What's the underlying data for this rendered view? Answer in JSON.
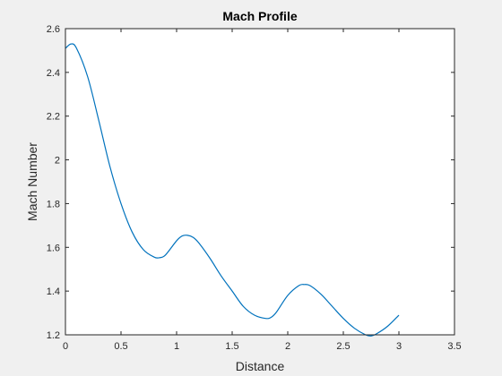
{
  "chart_data": {
    "type": "line",
    "title": "Mach Profile",
    "xlabel": "Distance",
    "ylabel": "Mach Number",
    "xlim": [
      0,
      3.5
    ],
    "ylim": [
      1.2,
      2.6
    ],
    "xticks": [
      "0",
      "0.5",
      "1",
      "1.5",
      "2",
      "2.5",
      "3",
      "3.5"
    ],
    "yticks": [
      "1.2",
      "1.4",
      "1.6",
      "1.8",
      "2",
      "2.2",
      "2.4",
      "2.6"
    ],
    "grid": false,
    "colors": {
      "line": "#0072bd",
      "axes": "#262626",
      "plot_bg": "#ffffff",
      "figure_bg": "#f0f0f0"
    },
    "series": [
      {
        "x": [
          0,
          0.05,
          0.1,
          0.2,
          0.3,
          0.4,
          0.5,
          0.6,
          0.7,
          0.8,
          0.85,
          0.9,
          1.0,
          1.05,
          1.1,
          1.15,
          1.2,
          1.3,
          1.4,
          1.5,
          1.6,
          1.7,
          1.8,
          1.85,
          1.9,
          2.0,
          2.1,
          2.15,
          2.2,
          2.3,
          2.4,
          2.5,
          2.6,
          2.7,
          2.75,
          2.8,
          2.9,
          3.0
        ],
        "y": [
          2.51,
          2.53,
          2.51,
          2.38,
          2.18,
          1.97,
          1.8,
          1.67,
          1.59,
          1.555,
          1.553,
          1.565,
          1.63,
          1.652,
          1.655,
          1.645,
          1.62,
          1.55,
          1.47,
          1.4,
          1.33,
          1.29,
          1.275,
          1.28,
          1.305,
          1.38,
          1.425,
          1.43,
          1.425,
          1.385,
          1.33,
          1.275,
          1.23,
          1.2,
          1.195,
          1.205,
          1.24,
          1.29
        ]
      }
    ]
  }
}
